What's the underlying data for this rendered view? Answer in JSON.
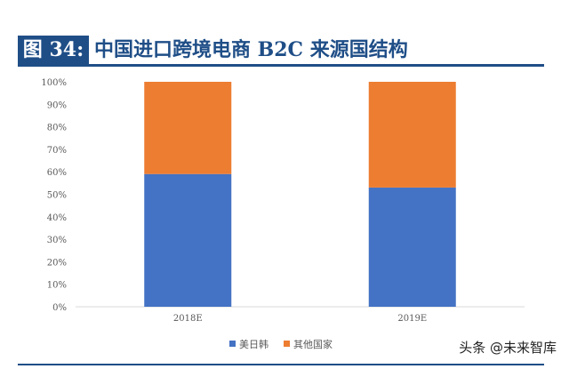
{
  "header": {
    "label": "图 34:",
    "title": "中国进口跨境电商 B2C 来源国结构"
  },
  "watermark": "头条 @未来智库",
  "chart_data": {
    "type": "bar",
    "stacked": true,
    "title": "中国进口跨境电商 B2C 来源国结构",
    "categories": [
      "2018E",
      "2019E"
    ],
    "series": [
      {
        "name": "美日韩",
        "color": "#4472c4",
        "values": [
          59,
          53
        ]
      },
      {
        "name": "其他国家",
        "color": "#ed7d31",
        "values": [
          41,
          47
        ]
      }
    ],
    "ylim": [
      0,
      100
    ],
    "yticks": [
      "0%",
      "10%",
      "20%",
      "30%",
      "40%",
      "50%",
      "60%",
      "70%",
      "80%",
      "90%",
      "100%"
    ],
    "legend": "bottom"
  }
}
